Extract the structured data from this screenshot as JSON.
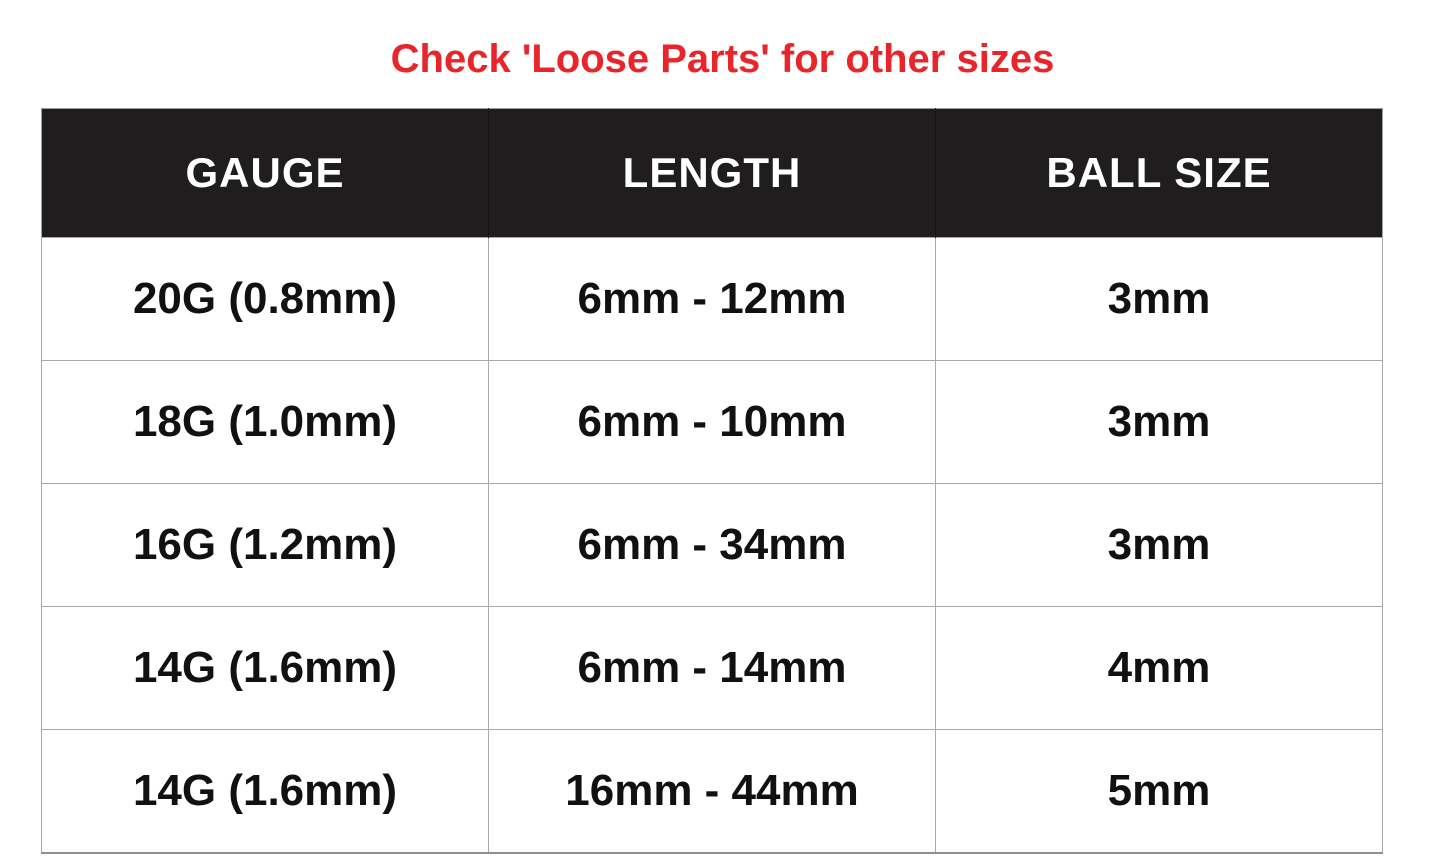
{
  "title": {
    "text": "Check 'Loose Parts' for other sizes",
    "color": "#e8252a"
  },
  "style": {
    "accent_red": "#e8252a",
    "header_bg": "#1f1d1e",
    "header_text": "#ffffff",
    "border_color": "#a8a8a8"
  },
  "chart_data": {
    "type": "table",
    "title": "Check 'Loose Parts' for other sizes",
    "columns": [
      "GAUGE",
      "LENGTH",
      "BALL SIZE"
    ],
    "rows": [
      [
        "20G (0.8mm)",
        "6mm - 12mm",
        "3mm"
      ],
      [
        "18G (1.0mm)",
        "6mm - 10mm",
        "3mm"
      ],
      [
        "16G (1.2mm)",
        "6mm - 34mm",
        "3mm"
      ],
      [
        "14G (1.6mm)",
        "6mm - 14mm",
        "4mm"
      ],
      [
        "14G (1.6mm)",
        "16mm - 44mm",
        "5mm"
      ]
    ]
  }
}
